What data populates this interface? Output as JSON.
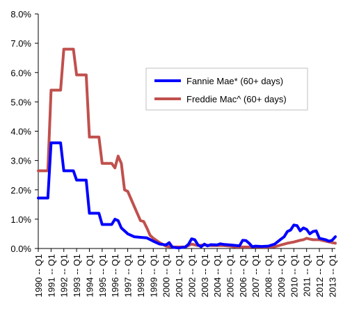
{
  "chart_data": {
    "type": "line",
    "title": "",
    "xlabel": "",
    "ylabel": "",
    "ylim": [
      0,
      8
    ],
    "y_ticks": [
      "0.0%",
      "1.0%",
      "2.0%",
      "3.0%",
      "4.0%",
      "5.0%",
      "6.0%",
      "7.0%",
      "8.0%"
    ],
    "x_tick_labels": [
      "1990 -- Q1",
      "1991 -- Q1",
      "1992 -- Q1",
      "1993 -- Q1",
      "1994 -- Q1",
      "1995 -- Q1",
      "1996 -- Q1",
      "1997 -- Q1",
      "1998 -- Q1",
      "1999 -- Q1",
      "2000 -- Q1",
      "2001 -- Q1",
      "2002 -- Q1",
      "2003 -- Q1",
      "2004 -- Q1",
      "2005 -- Q1",
      "2006 -- Q1",
      "2007 -- Q1",
      "2008 -- Q1",
      "2009 -- Q1",
      "2010 -- Q1",
      "2011 -- Q1",
      "2012 -- Q1",
      "2013 -- Q1"
    ],
    "grid": false,
    "legend_position": "upper-right",
    "series": [
      {
        "name": "Fannie Mae* (60+ days)",
        "color": "#0000FF",
        "points": [
          [
            1990.0,
            1.72
          ],
          [
            1990.75,
            1.72
          ],
          [
            1991.0,
            3.6
          ],
          [
            1991.75,
            3.6
          ],
          [
            1992.0,
            2.65
          ],
          [
            1992.75,
            2.65
          ],
          [
            1993.0,
            2.33
          ],
          [
            1993.75,
            2.33
          ],
          [
            1994.0,
            1.2
          ],
          [
            1994.75,
            1.2
          ],
          [
            1995.0,
            0.82
          ],
          [
            1995.75,
            0.82
          ],
          [
            1996.0,
            1.0
          ],
          [
            1996.25,
            0.95
          ],
          [
            1996.5,
            0.7
          ],
          [
            1997.0,
            0.5
          ],
          [
            1997.5,
            0.4
          ],
          [
            1998.0,
            0.38
          ],
          [
            1998.5,
            0.36
          ],
          [
            1999.0,
            0.25
          ],
          [
            1999.5,
            0.15
          ],
          [
            2000.0,
            0.12
          ],
          [
            2000.25,
            0.2
          ],
          [
            2000.5,
            0.04
          ],
          [
            2001.0,
            0.02
          ],
          [
            2001.5,
            0.05
          ],
          [
            2001.75,
            0.14
          ],
          [
            2002.0,
            0.33
          ],
          [
            2002.25,
            0.3
          ],
          [
            2002.5,
            0.12
          ],
          [
            2002.75,
            0.06
          ],
          [
            2003.0,
            0.15
          ],
          [
            2003.25,
            0.09
          ],
          [
            2003.5,
            0.13
          ],
          [
            2004.0,
            0.12
          ],
          [
            2004.25,
            0.16
          ],
          [
            2004.5,
            0.14
          ],
          [
            2005.0,
            0.12
          ],
          [
            2005.5,
            0.1
          ],
          [
            2005.75,
            0.09
          ],
          [
            2006.0,
            0.28
          ],
          [
            2006.25,
            0.27
          ],
          [
            2006.5,
            0.18
          ],
          [
            2006.75,
            0.06
          ],
          [
            2007.0,
            0.08
          ],
          [
            2007.5,
            0.07
          ],
          [
            2008.0,
            0.08
          ],
          [
            2008.5,
            0.15
          ],
          [
            2009.0,
            0.32
          ],
          [
            2009.25,
            0.4
          ],
          [
            2009.5,
            0.58
          ],
          [
            2009.75,
            0.63
          ],
          [
            2010.0,
            0.8
          ],
          [
            2010.25,
            0.78
          ],
          [
            2010.5,
            0.6
          ],
          [
            2010.75,
            0.7
          ],
          [
            2011.0,
            0.65
          ],
          [
            2011.25,
            0.5
          ],
          [
            2011.5,
            0.58
          ],
          [
            2011.75,
            0.6
          ],
          [
            2012.0,
            0.35
          ],
          [
            2012.5,
            0.3
          ],
          [
            2012.75,
            0.25
          ],
          [
            2013.0,
            0.28
          ],
          [
            2013.25,
            0.4
          ]
        ]
      },
      {
        "name": "Freddie Mac^ (60+ days)",
        "color": "#C0504D",
        "points": [
          [
            1990.0,
            2.65
          ],
          [
            1990.75,
            2.65
          ],
          [
            1991.0,
            5.4
          ],
          [
            1991.75,
            5.4
          ],
          [
            1992.0,
            6.8
          ],
          [
            1992.75,
            6.8
          ],
          [
            1993.0,
            5.92
          ],
          [
            1993.75,
            5.92
          ],
          [
            1994.0,
            3.8
          ],
          [
            1994.75,
            3.8
          ],
          [
            1995.0,
            2.9
          ],
          [
            1995.75,
            2.9
          ],
          [
            1996.0,
            2.75
          ],
          [
            1996.25,
            3.15
          ],
          [
            1996.5,
            2.9
          ],
          [
            1996.75,
            2.0
          ],
          [
            1997.0,
            1.95
          ],
          [
            1997.5,
            1.45
          ],
          [
            1998.0,
            0.95
          ],
          [
            1998.25,
            0.92
          ],
          [
            1998.5,
            0.7
          ],
          [
            1998.75,
            0.45
          ],
          [
            1999.0,
            0.35
          ],
          [
            1999.5,
            0.2
          ],
          [
            2000.0,
            0.08
          ],
          [
            2000.5,
            0.05
          ],
          [
            2001.0,
            0.05
          ],
          [
            2001.5,
            0.05
          ],
          [
            2002.0,
            0.15
          ],
          [
            2002.5,
            0.1
          ],
          [
            2003.0,
            0.12
          ],
          [
            2003.5,
            0.1
          ],
          [
            2004.0,
            0.1
          ],
          [
            2004.5,
            0.1
          ],
          [
            2005.0,
            0.08
          ],
          [
            2005.5,
            0.05
          ],
          [
            2006.0,
            0.05
          ],
          [
            2006.5,
            0.05
          ],
          [
            2007.0,
            0.06
          ],
          [
            2007.5,
            0.05
          ],
          [
            2008.0,
            0.05
          ],
          [
            2008.5,
            0.06
          ],
          [
            2009.0,
            0.12
          ],
          [
            2009.5,
            0.18
          ],
          [
            2010.0,
            0.22
          ],
          [
            2010.5,
            0.28
          ],
          [
            2010.75,
            0.3
          ],
          [
            2011.0,
            0.35
          ],
          [
            2011.25,
            0.32
          ],
          [
            2011.5,
            0.3
          ],
          [
            2012.0,
            0.3
          ],
          [
            2012.5,
            0.25
          ],
          [
            2013.0,
            0.2
          ],
          [
            2013.25,
            0.18
          ]
        ]
      }
    ]
  }
}
